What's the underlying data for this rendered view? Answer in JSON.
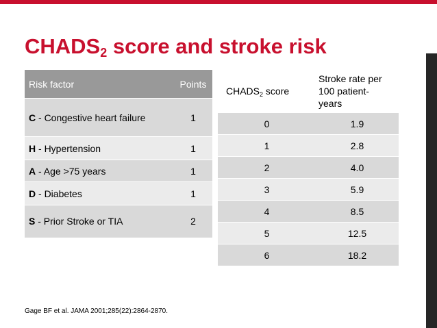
{
  "slide": {
    "title_main": "CHADS",
    "title_sub": "2",
    "title_rest": " score and stroke risk",
    "accent_color": "#c8102e",
    "citation": "Gage BF et al. JAMA 2001;285(22):2864-2870."
  },
  "risk_table": {
    "headers": {
      "factor": "Risk factor",
      "points": "Points"
    },
    "rows": [
      {
        "letter": "C",
        "desc": " - Congestive heart failure",
        "points": "1"
      },
      {
        "letter": "H",
        "desc": " - Hypertension",
        "points": "1"
      },
      {
        "letter": "A",
        "desc": " - Age >75 years",
        "points": "1"
      },
      {
        "letter": "D",
        "desc": " - Diabetes",
        "points": "1"
      },
      {
        "letter": "S",
        "desc": " - Prior Stroke or TIA",
        "points": "2"
      }
    ]
  },
  "stroke_table": {
    "headers": {
      "score_main": "CHADS",
      "score_sub": "2",
      "score_rest": " score",
      "rate_line1": "Stroke rate per",
      "rate_line2": "100 patient-",
      "rate_line3": "years"
    },
    "rows": [
      {
        "score": "0",
        "rate": "1.9"
      },
      {
        "score": "1",
        "rate": "2.8"
      },
      {
        "score": "2",
        "rate": "4.0"
      },
      {
        "score": "3",
        "rate": "5.9"
      },
      {
        "score": "4",
        "rate": "8.5"
      },
      {
        "score": "5",
        "rate": "12.5"
      },
      {
        "score": "6",
        "rate": "18.2"
      }
    ]
  }
}
